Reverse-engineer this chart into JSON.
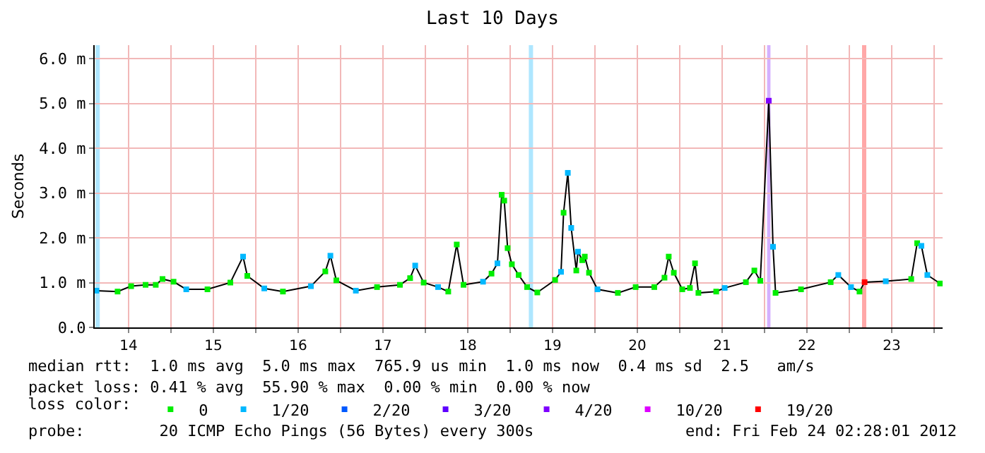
{
  "chart_data": {
    "type": "line",
    "title": "Last 10 Days",
    "ylabel": "Seconds",
    "legend_title": "loss color:",
    "legend": "bottom",
    "grid": true,
    "marker": "square",
    "line_style": "solid",
    "xlim": [
      14.1,
      24.1
    ],
    "xticks": [
      {
        "value": 14.5,
        "label": "14"
      },
      {
        "value": 15,
        "label": null
      },
      {
        "value": 15.5,
        "label": "15"
      },
      {
        "value": 16,
        "label": null
      },
      {
        "value": 16.5,
        "label": "16"
      },
      {
        "value": 17,
        "label": null
      },
      {
        "value": 17.5,
        "label": "17"
      },
      {
        "value": 18,
        "label": null
      },
      {
        "value": 18.5,
        "label": "18"
      },
      {
        "value": 19,
        "label": null
      },
      {
        "value": 19.5,
        "label": "19"
      },
      {
        "value": 20,
        "label": null
      },
      {
        "value": 20.5,
        "label": "20"
      },
      {
        "value": 21,
        "label": null
      },
      {
        "value": 21.5,
        "label": "21"
      },
      {
        "value": 22,
        "label": null
      },
      {
        "value": 22.5,
        "label": "22"
      },
      {
        "value": 23,
        "label": null
      },
      {
        "value": 23.5,
        "label": "23"
      },
      {
        "value": 24,
        "label": null
      }
    ],
    "ylim": [
      0,
      6.3
    ],
    "yticks": [
      {
        "value": 0,
        "label": "0.0"
      },
      {
        "value": 1,
        "label": "1.0 m"
      },
      {
        "value": 2,
        "label": "2.0 m"
      },
      {
        "value": 3,
        "label": "3.0 m"
      },
      {
        "value": 4,
        "label": "4.0 m"
      },
      {
        "value": 5,
        "label": "5.0 m"
      },
      {
        "value": 6,
        "label": "6.0 m"
      }
    ],
    "x": [
      14.12,
      14.37,
      14.53,
      14.7,
      14.82,
      14.9,
      15.03,
      15.18,
      15.43,
      15.7,
      15.85,
      15.9,
      16.1,
      16.32,
      16.65,
      16.82,
      16.88,
      16.95,
      17.18,
      17.43,
      17.7,
      17.82,
      17.88,
      17.98,
      18.15,
      18.27,
      18.37,
      18.45,
      18.68,
      18.78,
      18.85,
      18.9,
      18.93,
      18.97,
      19.02,
      19.1,
      19.2,
      19.32,
      19.53,
      19.6,
      19.63,
      19.68,
      19.72,
      19.78,
      19.8,
      19.85,
      19.88,
      19.93,
      20.03,
      20.27,
      20.48,
      20.7,
      20.82,
      20.87,
      20.93,
      21.03,
      21.12,
      21.18,
      21.22,
      21.43,
      21.53,
      21.78,
      21.88,
      21.95,
      22.05,
      22.1,
      22.13,
      22.43,
      22.78,
      22.87,
      23.02,
      23.12,
      23.18,
      23.43,
      23.73,
      23.8,
      23.85,
      23.92,
      24.07
    ],
    "series": [
      {
        "color": "#000000",
        "marker": "none",
        "values": [
          0.82,
          0.8,
          0.92,
          0.95,
          0.95,
          1.08,
          1.02,
          0.85,
          0.85,
          1.0,
          1.58,
          1.15,
          0.87,
          0.8,
          0.92,
          1.25,
          1.6,
          1.05,
          0.82,
          0.9,
          0.95,
          1.1,
          1.38,
          1.0,
          0.9,
          0.8,
          1.85,
          0.95,
          1.02,
          1.2,
          1.43,
          2.96,
          2.83,
          1.77,
          1.41,
          1.17,
          0.9,
          0.78,
          1.06,
          1.24,
          2.56,
          3.45,
          2.22,
          1.27,
          1.69,
          1.5,
          1.58,
          1.22,
          0.85,
          0.77,
          0.9,
          0.9,
          1.11,
          1.58,
          1.22,
          0.85,
          0.88,
          1.43,
          0.77,
          0.8,
          0.88,
          1.01,
          1.27,
          1.04,
          5.06,
          1.8,
          0.77,
          0.85,
          1.01,
          1.17,
          0.9,
          0.8,
          1.01,
          1.03,
          1.08,
          1.88,
          1.82,
          1.17,
          0.98
        ]
      },
      {
        "type": "scatter",
        "name": "0",
        "color": "#00ee00",
        "x": [
          14.37,
          14.53,
          14.7,
          14.82,
          14.9,
          15.03,
          15.43,
          15.7,
          15.9,
          16.32,
          16.82,
          16.95,
          17.43,
          17.7,
          17.82,
          17.98,
          18.27,
          18.37,
          18.45,
          18.78,
          18.9,
          18.93,
          18.97,
          19.02,
          19.1,
          19.2,
          19.32,
          19.53,
          19.63,
          19.78,
          19.85,
          19.88,
          19.93,
          20.27,
          20.48,
          20.7,
          20.82,
          20.87,
          20.93,
          21.03,
          21.12,
          21.18,
          21.22,
          21.43,
          21.78,
          21.88,
          21.95,
          22.13,
          22.43,
          22.78,
          23.12,
          23.73,
          23.8,
          24.07
        ],
        "values": [
          0.8,
          0.92,
          0.95,
          0.95,
          1.08,
          1.02,
          0.85,
          1.0,
          1.15,
          0.8,
          1.25,
          1.05,
          0.9,
          0.95,
          1.1,
          1.0,
          0.8,
          1.85,
          0.95,
          1.2,
          2.96,
          2.83,
          1.77,
          1.41,
          1.17,
          0.9,
          0.78,
          1.06,
          2.56,
          1.27,
          1.5,
          1.58,
          1.22,
          0.77,
          0.9,
          0.9,
          1.11,
          1.58,
          1.22,
          0.85,
          0.88,
          1.43,
          0.77,
          0.8,
          1.01,
          1.27,
          1.04,
          0.77,
          0.85,
          1.01,
          0.8,
          1.08,
          1.88,
          0.98
        ]
      },
      {
        "type": "scatter",
        "name": "1/20",
        "color": "#00b8ff",
        "x": [
          14.12,
          15.18,
          15.85,
          16.1,
          16.65,
          16.88,
          17.18,
          17.88,
          18.15,
          18.68,
          18.85,
          19.6,
          19.68,
          19.72,
          19.8,
          20.03,
          21.53,
          22.1,
          22.87,
          23.02,
          23.43,
          23.85,
          23.92
        ],
        "values": [
          0.82,
          0.85,
          1.58,
          0.87,
          0.92,
          1.6,
          0.82,
          1.38,
          0.9,
          1.02,
          1.43,
          1.24,
          3.45,
          2.22,
          1.69,
          0.85,
          0.88,
          1.8,
          1.17,
          0.9,
          1.03,
          1.82,
          1.17
        ]
      },
      {
        "type": "scatter",
        "name": "2/20",
        "color": "#0059ff",
        "values": [
          null,
          null,
          null,
          null,
          null,
          null,
          null,
          null,
          null,
          null,
          null,
          null,
          null,
          null,
          null,
          null,
          null,
          null,
          null,
          null,
          null,
          null,
          null,
          null,
          null,
          null,
          null,
          null,
          null,
          null,
          null,
          null,
          null,
          null,
          null,
          null,
          null,
          null,
          null,
          null,
          null,
          null,
          null,
          null,
          null,
          null,
          null,
          null,
          null,
          null,
          null,
          null,
          null,
          null,
          null,
          null,
          null,
          null,
          null,
          null,
          null,
          null,
          null,
          null,
          null,
          null,
          null,
          null,
          null,
          null,
          null,
          null,
          null,
          null,
          null,
          null,
          null,
          null,
          null
        ]
      },
      {
        "type": "scatter",
        "name": "3/20",
        "color": "#5e00ff",
        "values": [
          null,
          null,
          null,
          null,
          null,
          null,
          null,
          null,
          null,
          null,
          null,
          null,
          null,
          null,
          null,
          null,
          null,
          null,
          null,
          null,
          null,
          null,
          null,
          null,
          null,
          null,
          null,
          null,
          null,
          null,
          null,
          null,
          null,
          null,
          null,
          null,
          null,
          null,
          null,
          null,
          null,
          null,
          null,
          null,
          null,
          null,
          null,
          null,
          null,
          null,
          null,
          null,
          null,
          null,
          null,
          null,
          null,
          null,
          null,
          null,
          null,
          null,
          null,
          null,
          null,
          null,
          null,
          null,
          null,
          null,
          null,
          null,
          null,
          null,
          null,
          null,
          null,
          null,
          null
        ]
      },
      {
        "type": "scatter",
        "name": "4/20",
        "color": "#7e00ff",
        "x": [
          22.05
        ],
        "values": [
          5.06
        ]
      },
      {
        "type": "scatter",
        "name": "10/20",
        "color": "#dd00ff",
        "values": [
          null,
          null,
          null,
          null,
          null,
          null,
          null,
          null,
          null,
          null,
          null,
          null,
          null,
          null,
          null,
          null,
          null,
          null,
          null,
          null,
          null,
          null,
          null,
          null,
          null,
          null,
          null,
          null,
          null,
          null,
          null,
          null,
          null,
          null,
          null,
          null,
          null,
          null,
          null,
          null,
          null,
          null,
          null,
          null,
          null,
          null,
          null,
          null,
          null,
          null,
          null,
          null,
          null,
          null,
          null,
          null,
          null,
          null,
          null,
          null,
          null,
          null,
          null,
          null,
          null,
          null,
          null,
          null,
          null,
          null,
          null,
          null,
          null,
          null,
          null,
          null,
          null,
          null,
          null
        ]
      },
      {
        "type": "scatter",
        "name": "19/20",
        "color": "#ff0000",
        "x": [
          23.18
        ],
        "values": [
          1.01
        ]
      }
    ],
    "bands": [
      {
        "axis": "x",
        "from": 14.11,
        "to": 14.16,
        "color": "#aee6ff"
      },
      {
        "axis": "x",
        "from": 19.22,
        "to": 19.27,
        "color": "#aee6ff"
      },
      {
        "axis": "x",
        "from": 22.03,
        "to": 22.07,
        "color": "#d4b0ff"
      },
      {
        "axis": "x",
        "from": 23.15,
        "to": 23.2,
        "color": "#ffa8a8"
      }
    ],
    "annotations": [
      "median rtt:  1.0 ms avg  5.0 ms max  765.9 us min  1.0 ms now  0.4 ms sd  2.5   am/s",
      "packet loss: 0.41 % avg  55.90 % max  0.00 % min  0.00 % now",
      "probe:        20 ICMP Echo Pings (56 Bytes) every 300s",
      "end: Fri Feb 24 02:28:01 2012"
    ]
  }
}
